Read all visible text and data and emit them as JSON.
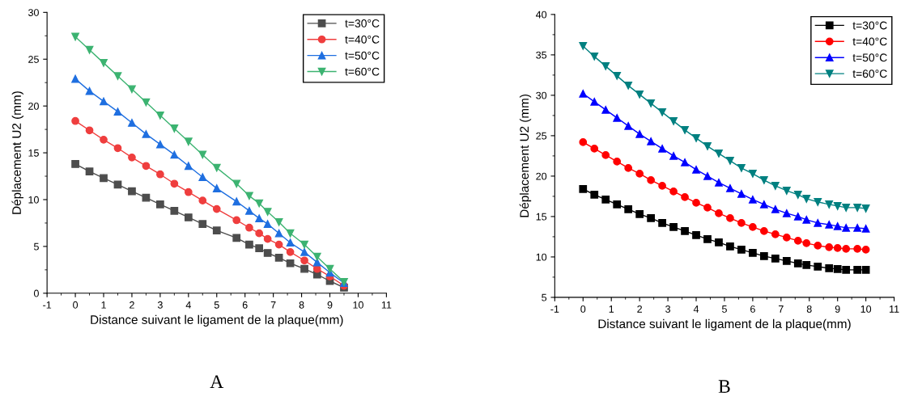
{
  "chart_data": [
    {
      "type": "line",
      "xlabel": "Distance suivant le ligament de la plaque(mm)",
      "ylabel": "Déplacement U2 (mm)",
      "annotations": [
        "A"
      ],
      "xlim": [
        -1,
        11
      ],
      "xticks": [
        -1,
        0,
        1,
        2,
        3,
        4,
        5,
        6,
        7,
        8,
        9,
        10,
        11
      ],
      "ylim": [
        0,
        30
      ],
      "yticks": [
        0,
        5,
        10,
        15,
        20,
        25,
        30
      ],
      "x": [
        0,
        0.5,
        1,
        1.5,
        2,
        2.5,
        3,
        3.5,
        4,
        4.5,
        5,
        5.7,
        6.15,
        6.5,
        6.8,
        7.2,
        7.6,
        8.1,
        8.55,
        9,
        9.5
      ],
      "grid": false,
      "legend": "top right",
      "series": [
        {
          "name": "t=30°C",
          "color": "#4d4d4d",
          "marker": "square",
          "values": [
            13.8,
            13.0,
            12.3,
            11.6,
            10.9,
            10.2,
            9.5,
            8.8,
            8.1,
            7.4,
            6.7,
            5.9,
            5.2,
            4.8,
            4.3,
            3.8,
            3.2,
            2.6,
            2.0,
            1.3,
            0.6
          ]
        },
        {
          "name": "t=40°C",
          "color": "#ef3e3e",
          "marker": "circle",
          "values": [
            18.4,
            17.4,
            16.4,
            15.5,
            14.5,
            13.6,
            12.7,
            11.7,
            10.8,
            9.9,
            9.0,
            7.8,
            7.0,
            6.4,
            5.8,
            5.2,
            4.4,
            3.5,
            2.6,
            1.8,
            0.8
          ]
        },
        {
          "name": "t=50°C",
          "color": "#1f6fe0",
          "marker": "triangle",
          "values": [
            22.9,
            21.6,
            20.5,
            19.4,
            18.2,
            17.0,
            15.9,
            14.8,
            13.6,
            12.4,
            11.2,
            9.8,
            8.8,
            8.0,
            7.4,
            6.4,
            5.4,
            4.4,
            3.3,
            2.2,
            1.1
          ]
        },
        {
          "name": "t=60°C",
          "color": "#3cb371",
          "marker": "triangle_down",
          "values": [
            27.4,
            26.0,
            24.6,
            23.2,
            21.8,
            20.4,
            19.0,
            17.6,
            16.2,
            14.8,
            13.4,
            11.7,
            10.4,
            9.6,
            8.7,
            7.6,
            6.4,
            5.2,
            3.9,
            2.6,
            1.2
          ]
        }
      ]
    },
    {
      "type": "line",
      "xlabel": "Distance suivant le ligament de la plaque(mm)",
      "ylabel": "Déplacement U2 (mm)",
      "annotations": [
        "B"
      ],
      "xlim": [
        -1,
        11
      ],
      "xticks": [
        -1,
        0,
        1,
        2,
        3,
        4,
        5,
        6,
        7,
        8,
        9,
        10,
        11
      ],
      "ylim": [
        5,
        40
      ],
      "yticks": [
        5,
        10,
        15,
        20,
        25,
        30,
        35,
        40
      ],
      "x": [
        0,
        0.4,
        0.8,
        1.2,
        1.6,
        2,
        2.4,
        2.8,
        3.2,
        3.6,
        4,
        4.4,
        4.8,
        5.2,
        5.6,
        6,
        6.4,
        6.8,
        7.2,
        7.6,
        7.9,
        8.3,
        8.7,
        9.0,
        9.3,
        9.7,
        10
      ],
      "grid": false,
      "legend": "top right",
      "series": [
        {
          "name": "t=30°C",
          "color": "#000000",
          "marker": "square",
          "values": [
            18.4,
            17.7,
            17.1,
            16.5,
            15.9,
            15.3,
            14.8,
            14.2,
            13.7,
            13.2,
            12.7,
            12.2,
            11.8,
            11.3,
            10.9,
            10.5,
            10.1,
            9.8,
            9.5,
            9.2,
            9.0,
            8.8,
            8.6,
            8.5,
            8.4,
            8.4,
            8.4
          ]
        },
        {
          "name": "t=40°C",
          "color": "#ff0000",
          "marker": "circle",
          "values": [
            24.2,
            23.4,
            22.6,
            21.8,
            21.0,
            20.3,
            19.5,
            18.8,
            18.1,
            17.4,
            16.7,
            16.1,
            15.4,
            14.8,
            14.2,
            13.7,
            13.2,
            12.8,
            12.4,
            12.0,
            11.7,
            11.4,
            11.2,
            11.1,
            11.0,
            11.0,
            10.9
          ]
        },
        {
          "name": "t=50°C",
          "color": "#0000ff",
          "marker": "triangle",
          "values": [
            30.2,
            29.2,
            28.2,
            27.2,
            26.2,
            25.2,
            24.3,
            23.4,
            22.5,
            21.7,
            20.8,
            20.0,
            19.2,
            18.5,
            17.8,
            17.1,
            16.5,
            15.9,
            15.4,
            15.0,
            14.6,
            14.2,
            14.0,
            13.8,
            13.6,
            13.6,
            13.5
          ]
        },
        {
          "name": "t=60°C",
          "color": "#008080",
          "marker": "triangle_down",
          "values": [
            36.1,
            34.8,
            33.6,
            32.4,
            31.2,
            30.1,
            29.0,
            27.9,
            26.8,
            25.7,
            24.7,
            23.7,
            22.8,
            21.9,
            21.0,
            20.3,
            19.5,
            18.8,
            18.2,
            17.7,
            17.2,
            16.8,
            16.5,
            16.3,
            16.1,
            16.1,
            16.0
          ]
        }
      ]
    }
  ]
}
